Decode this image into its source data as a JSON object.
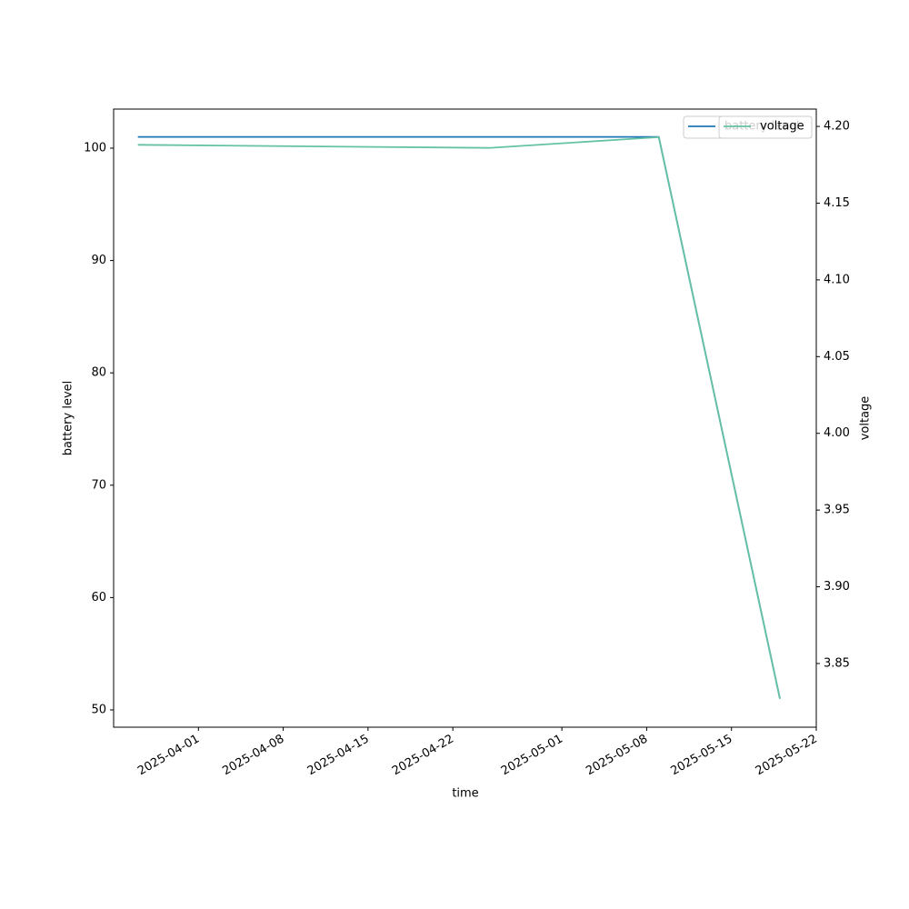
{
  "chart_data": {
    "type": "line",
    "x": [
      "2025-03-27",
      "2025-04-25",
      "2025-05-09",
      "2025-05-19"
    ],
    "xlim": [
      "2025-03-25",
      "2025-05-22"
    ],
    "xticks": [
      "2025-04-01",
      "2025-04-08",
      "2025-04-15",
      "2025-04-22",
      "2025-05-01",
      "2025-05-08",
      "2025-05-15",
      "2025-05-22"
    ],
    "xlabel": "time",
    "ylabel": "battery level",
    "y2label": "voltage",
    "ylim": [
      48.46,
      103.48
    ],
    "yticks": [
      50,
      60,
      70,
      80,
      90,
      100
    ],
    "y2lim": [
      3.8085,
      4.2113
    ],
    "y2ticks": [
      3.85,
      {
        "value": 3.9,
        "label": "3.90"
      },
      3.95,
      {
        "value": 4.0,
        "label": "4.00"
      },
      4.05,
      {
        "value": 4.1,
        "label": "4.10"
      },
      4.15,
      {
        "value": 4.2,
        "label": "4.20"
      }
    ],
    "series": [
      {
        "name": "battery level",
        "color": "#1f77b4",
        "values": [
          101,
          101,
          101,
          51
        ]
      },
      {
        "name": "voltage",
        "color": "#66c2a5",
        "axis": "y2",
        "values": [
          4.188,
          4.186,
          4.193,
          3.827
        ]
      }
    ]
  }
}
